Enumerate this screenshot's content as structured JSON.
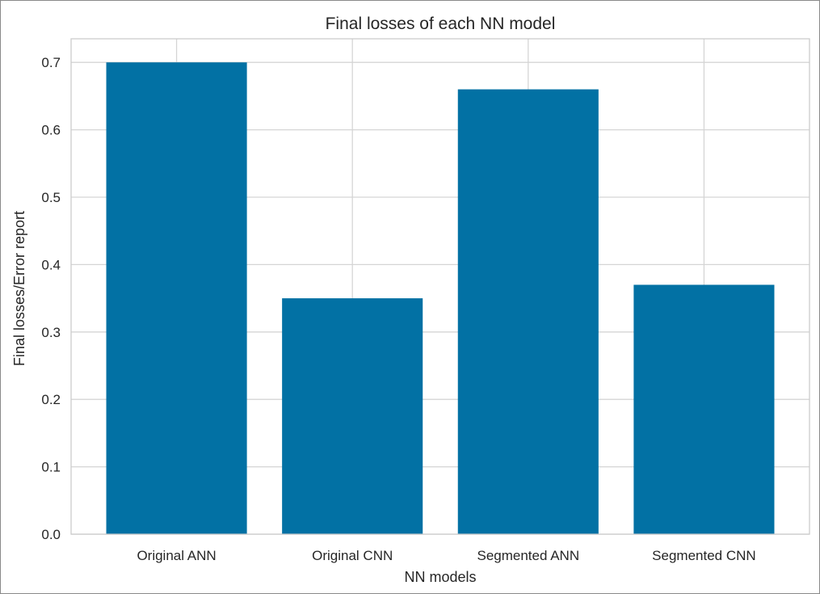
{
  "chart_data": {
    "type": "bar",
    "title": "Final losses of each NN model",
    "xlabel": "NN models",
    "ylabel": "Final losses/Error report",
    "categories": [
      "Original ANN",
      "Original CNN",
      "Segmented ANN",
      "Segmented CNN"
    ],
    "values": [
      0.7,
      0.35,
      0.66,
      0.37
    ],
    "ylim": [
      0,
      0.735
    ],
    "yticks": [
      "0.0",
      "0.1",
      "0.2",
      "0.3",
      "0.4",
      "0.5",
      "0.6",
      "0.7"
    ],
    "grid": true,
    "legend": "none",
    "colors": {
      "bar": "#0271a4",
      "grid": "#d5d5d5",
      "axes_edge": "#cccccc",
      "text": "#262626"
    }
  }
}
